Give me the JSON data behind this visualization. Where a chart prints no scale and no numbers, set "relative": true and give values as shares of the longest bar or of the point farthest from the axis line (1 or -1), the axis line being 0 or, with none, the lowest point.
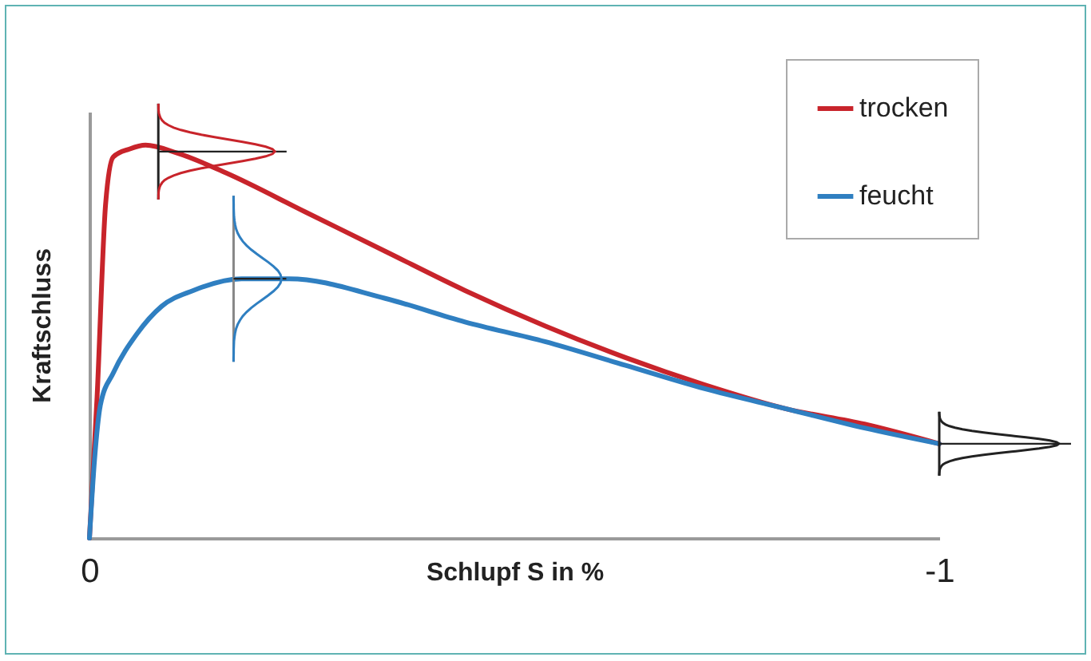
{
  "chart_data": {
    "type": "line",
    "relative": true,
    "xlabel": "Schlupf S in %",
    "ylabel": "Kraftschluss",
    "xlim": [
      0,
      -1
    ],
    "xticks": [
      0,
      -1
    ],
    "legend": "top right",
    "grid": false,
    "series": [
      {
        "name": "trocken",
        "color": "#c8242b",
        "x": [
          0,
          -0.009,
          -0.019,
          -0.028,
          -0.047,
          -0.066,
          -0.103,
          -0.16,
          -0.254,
          -0.348,
          -0.442,
          -0.536,
          -0.63,
          -0.724,
          -0.818,
          -0.912,
          -1
        ],
        "values": [
          0,
          0.36,
          0.85,
          0.97,
          0.99,
          1,
          0.98,
          0.93,
          0.83,
          0.73,
          0.63,
          0.54,
          0.46,
          0.39,
          0.33,
          0.29,
          0.24
        ]
      },
      {
        "name": "feucht",
        "color": "#2f7fc1",
        "x": [
          0,
          -0.006,
          -0.013,
          -0.028,
          -0.056,
          -0.085,
          -0.122,
          -0.179,
          -0.235,
          -0.348,
          -0.442,
          -0.536,
          -0.63,
          -0.724,
          -0.818,
          -0.912,
          -1
        ],
        "values": [
          0,
          0.2,
          0.34,
          0.42,
          0.52,
          0.59,
          0.63,
          0.66,
          0.66,
          0.61,
          0.55,
          0.5,
          0.44,
          0.38,
          0.33,
          0.28,
          0.24
        ]
      }
    ]
  }
}
